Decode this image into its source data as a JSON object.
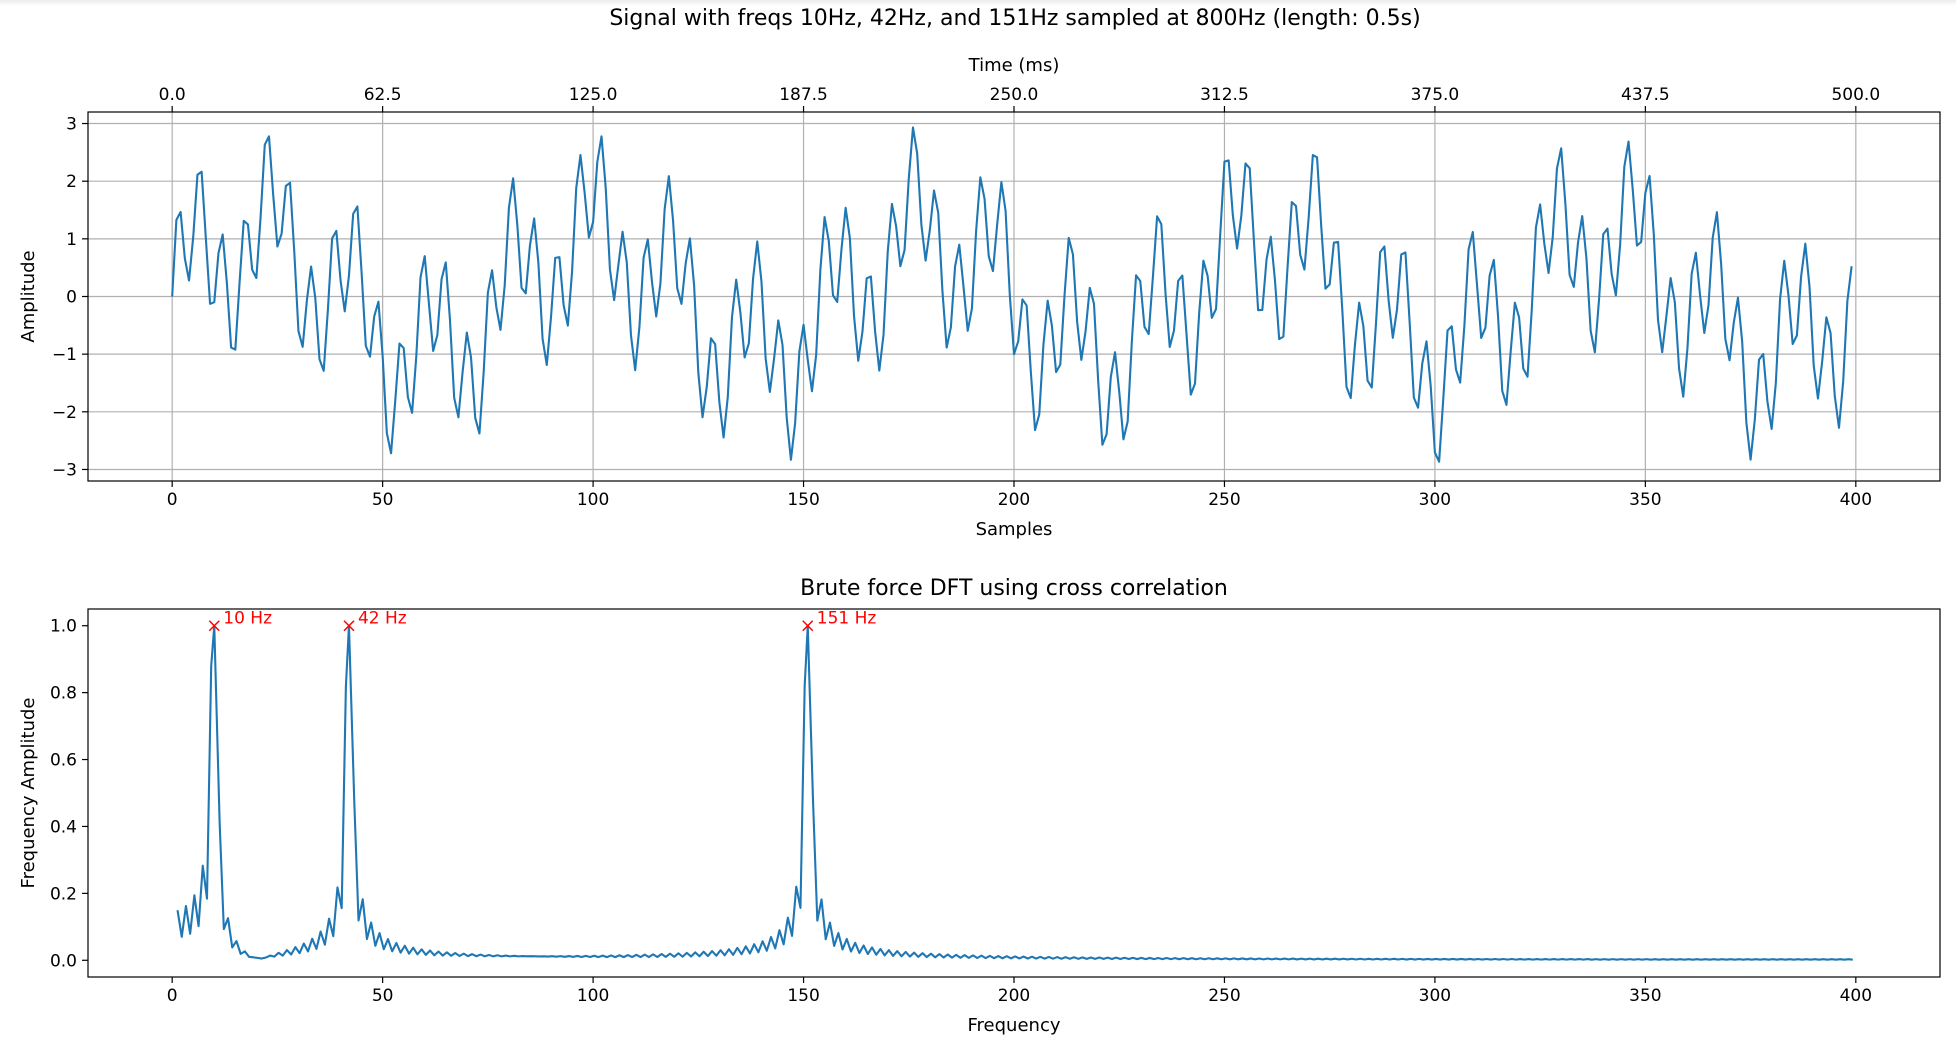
{
  "figure_title": "Signal with freqs 10Hz, 42Hz, and 151Hz sampled at 800Hz (length: 0.5s)",
  "line_color": "#1f77b4",
  "marker_color": "#ff0000",
  "chart_data": [
    {
      "type": "line",
      "title": "",
      "xlabel": "Samples",
      "ylabel": "Amplitude",
      "secondary_xlabel": "Time (ms)",
      "xlim": [
        -20,
        420
      ],
      "ylim": [
        -3.2,
        3.2
      ],
      "grid": true,
      "xticks": [
        0,
        50,
        100,
        150,
        200,
        250,
        300,
        350,
        400
      ],
      "xtick_labels": [
        "0",
        "50",
        "100",
        "150",
        "200",
        "250",
        "300",
        "350",
        "400"
      ],
      "yticks": [
        -3,
        -2,
        -1,
        0,
        1,
        2,
        3
      ],
      "ytick_labels": [
        "−3",
        "−2",
        "−1",
        "0",
        "1",
        "2",
        "3"
      ],
      "top_ticks": [
        0,
        50,
        100,
        150,
        200,
        250,
        300,
        350,
        400
      ],
      "top_tick_labels": [
        "0.0",
        "62.5",
        "125.0",
        "187.5",
        "250.0",
        "312.5",
        "375.0",
        "437.5",
        "500.0"
      ],
      "series": [
        {
          "sample_rate_hz": 800,
          "num_samples": 400,
          "components": [
            {
              "freq_hz": 10,
              "amplitude": 1
            },
            {
              "freq_hz": 42,
              "amplitude": 1
            },
            {
              "freq_hz": 151,
              "amplitude": 1
            }
          ]
        }
      ]
    },
    {
      "type": "line",
      "title": "Brute force DFT using cross correlation",
      "xlabel": "Frequency",
      "ylabel": "Frequency Amplitude",
      "xlim": [
        -20,
        420
      ],
      "ylim": [
        -0.05,
        1.05
      ],
      "grid": false,
      "xticks": [
        0,
        50,
        100,
        150,
        200,
        250,
        300,
        350,
        400
      ],
      "xtick_labels": [
        "0",
        "50",
        "100",
        "150",
        "200",
        "250",
        "300",
        "350",
        "400"
      ],
      "yticks": [
        0,
        0.2,
        0.4,
        0.6,
        0.8,
        1.0
      ],
      "ytick_labels": [
        "0.0",
        "0.2",
        "0.4",
        "0.6",
        "0.8",
        "1.0"
      ],
      "peaks": [
        {
          "x": 10,
          "y": 1.0,
          "label": "10 Hz"
        },
        {
          "x": 42,
          "y": 1.0,
          "label": "42 Hz"
        },
        {
          "x": 151,
          "y": 1.0,
          "label": "151 Hz"
        }
      ],
      "series": [
        {
          "x_range": [
            1,
            399
          ],
          "peak_freqs": [
            10,
            42,
            151
          ]
        }
      ]
    }
  ]
}
